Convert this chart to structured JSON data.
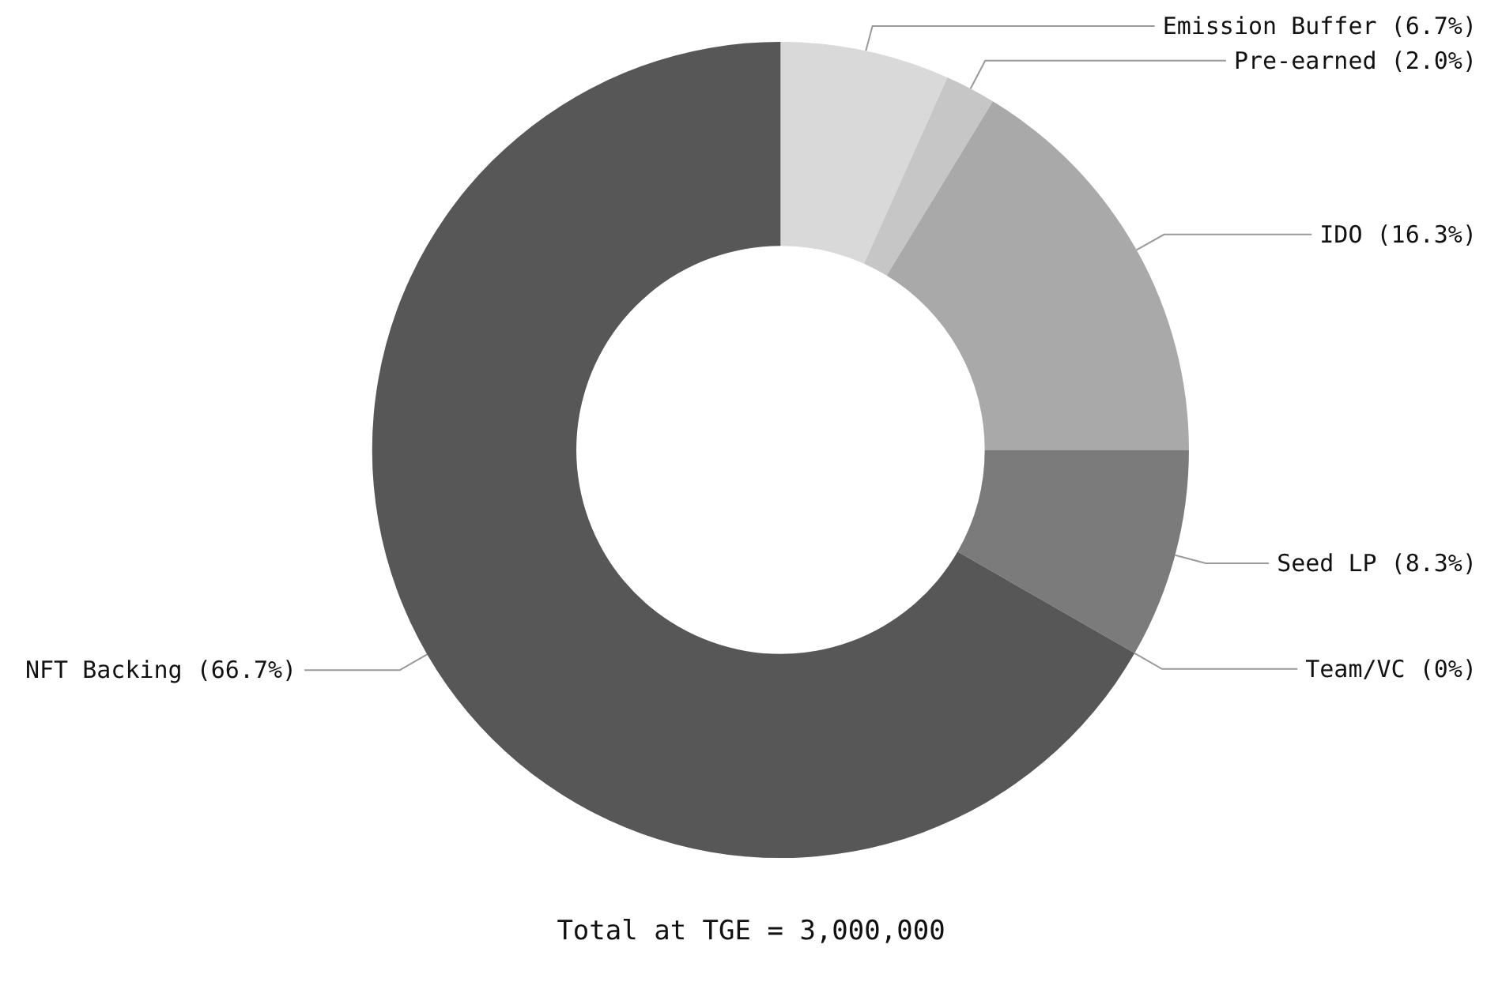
{
  "chart_data": {
    "type": "donut",
    "categories": [
      "Emission Buffer",
      "Pre-earned",
      "IDO",
      "Seed LP",
      "Team/VC",
      "NFT Backing"
    ],
    "values": [
      6.7,
      2.0,
      16.3,
      8.3,
      0,
      66.7
    ],
    "value_labels": [
      "(6.7%)",
      "(2.0%)",
      "(16.3%)",
      "(8.3%)",
      "(0%)",
      "(66.7%)"
    ],
    "colors": [
      "#d9d9d9",
      "#c6c6c6",
      "#a9a9a9",
      "#7b7b7b",
      "#666666",
      "#575757"
    ],
    "legend": false,
    "annotations": [
      "Total at TGE = 3,000,000"
    ]
  }
}
